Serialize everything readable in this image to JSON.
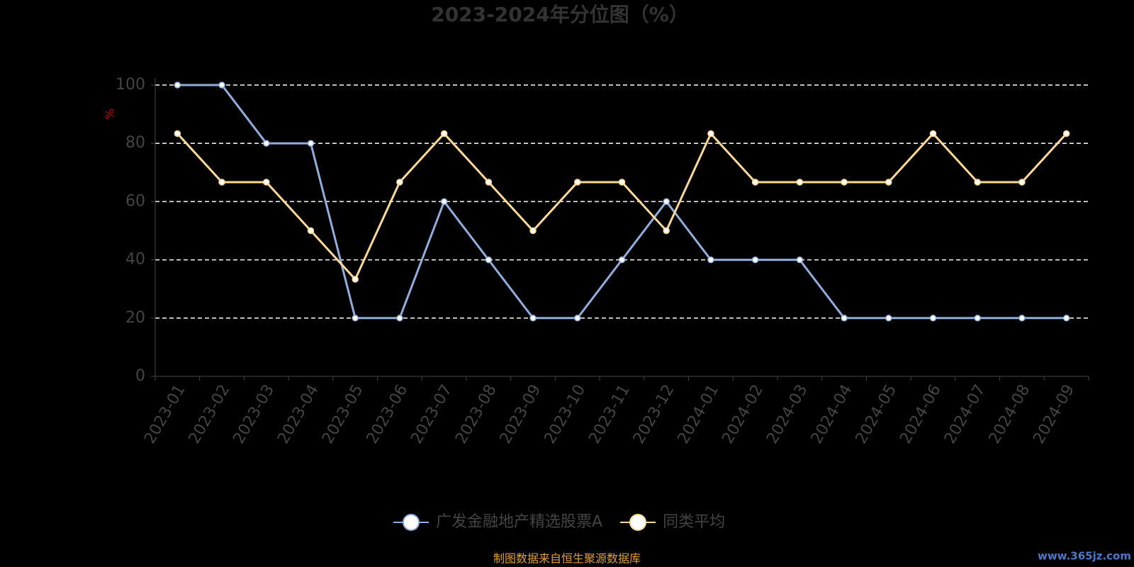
{
  "chart_data": {
    "type": "line",
    "title": "2023-2024年分位图（%）",
    "y_label": "%",
    "categories": [
      "2023-01",
      "2023-02",
      "2023-03",
      "2023-04",
      "2023-05",
      "2023-06",
      "2023-07",
      "2023-08",
      "2023-09",
      "2023-10",
      "2023-11",
      "2023-12",
      "2024-01",
      "2024-02",
      "2024-03",
      "2024-04",
      "2024-05",
      "2024-06",
      "2024-07",
      "2024-08",
      "2024-09"
    ],
    "series": [
      {
        "name": "广发金融地产精选股票A",
        "color": "#8eaedd",
        "values": [
          100,
          100,
          80,
          80,
          20,
          20,
          60,
          40,
          20,
          20,
          40,
          60,
          40,
          40,
          40,
          20,
          20,
          20,
          20,
          20,
          20
        ]
      },
      {
        "name": "同类平均",
        "color": "#fcd993",
        "values": [
          83.33,
          66.67,
          66.67,
          50,
          33.33,
          66.67,
          83.33,
          66.67,
          50,
          66.67,
          66.67,
          50,
          83.33,
          66.67,
          66.67,
          66.67,
          66.67,
          83.33,
          66.67,
          66.67,
          83.33
        ]
      }
    ],
    "ylim": [
      0,
      100
    ],
    "yticks": [
      0,
      20,
      40,
      60,
      80,
      100
    ],
    "grid": true,
    "source": "制图数据来自恒生聚源数据库",
    "watermark": "www.365jz.com"
  }
}
